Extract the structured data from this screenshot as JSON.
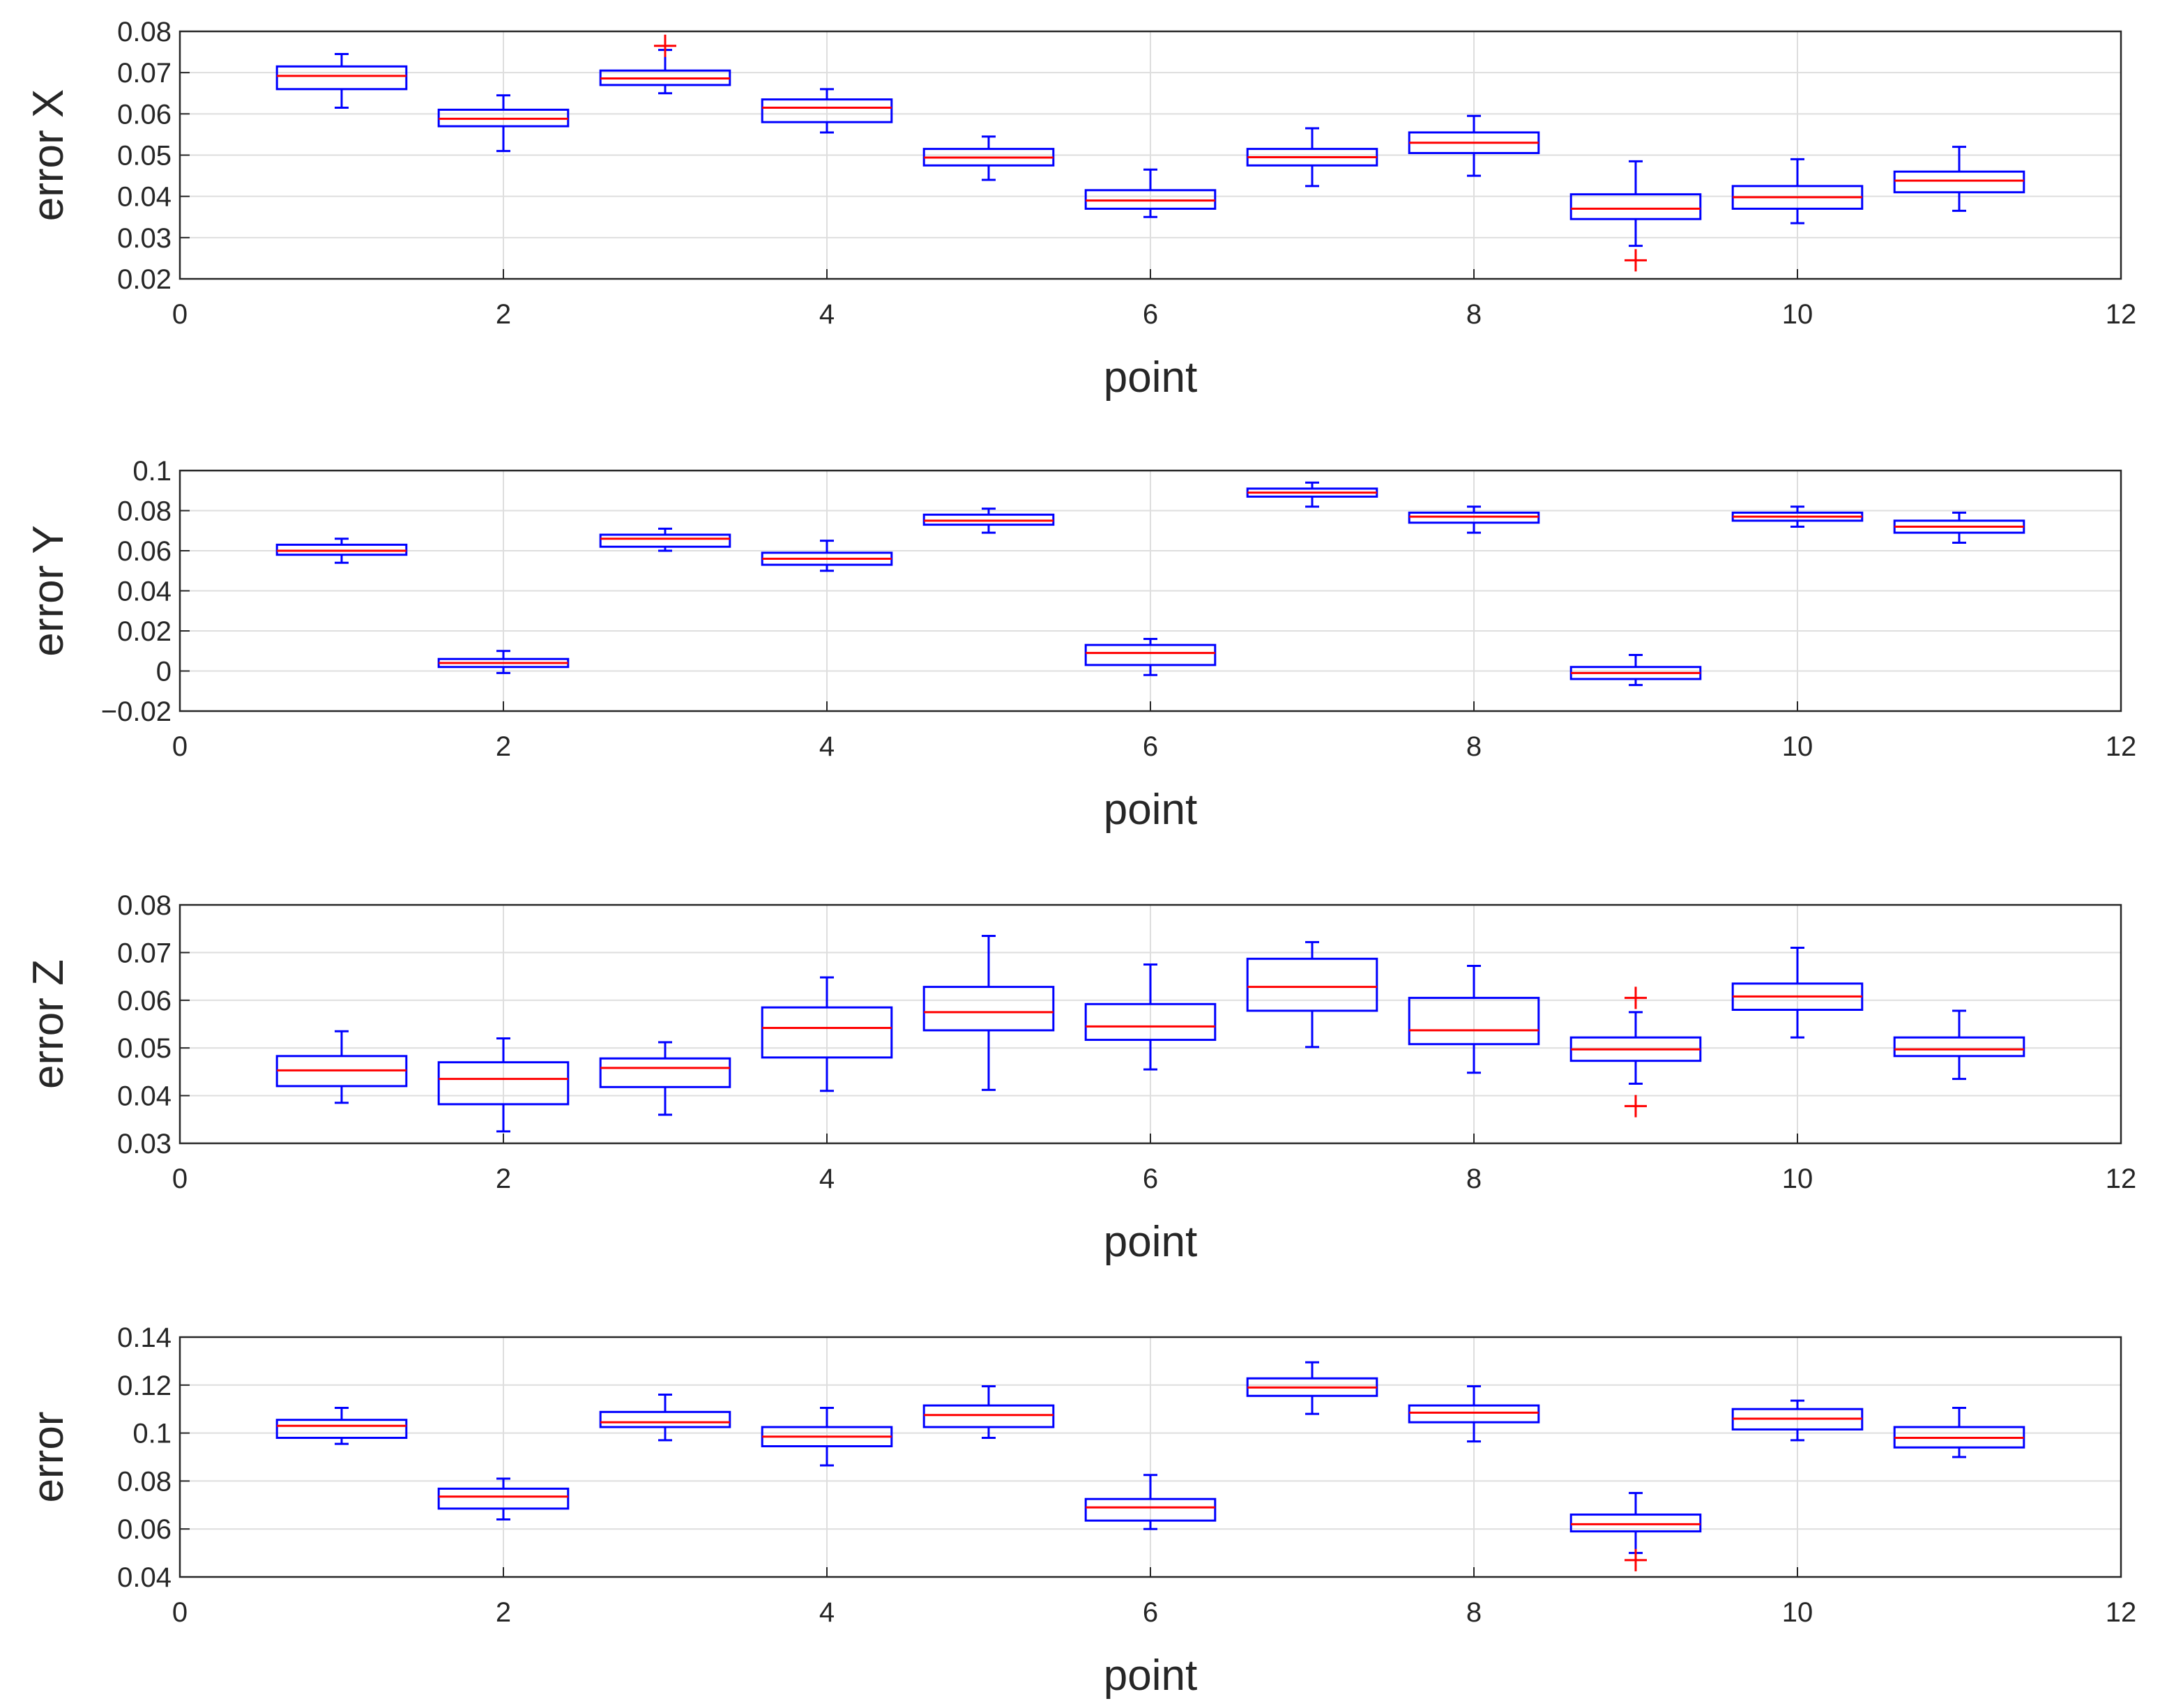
{
  "chart_data": [
    {
      "type": "box",
      "ylabel": "error X",
      "xlabel": "point",
      "xlim": [
        0,
        12
      ],
      "ylim": [
        0.02,
        0.08
      ],
      "xticks": [
        "0",
        "2",
        "4",
        "6",
        "8",
        "10",
        "12"
      ],
      "yticks": [
        "0.02",
        "0.03",
        "0.04",
        "0.05",
        "0.06",
        "0.07",
        "0.08"
      ],
      "grid": true,
      "box_color": "#0000ff",
      "median_color": "#ff0000",
      "outlier_color": "#ff0000",
      "boxes": [
        {
          "x": 1,
          "whisker_low": 0.0615,
          "q1": 0.066,
          "median": 0.0692,
          "q3": 0.0715,
          "whisker_high": 0.0745,
          "outliers": []
        },
        {
          "x": 2,
          "whisker_low": 0.051,
          "q1": 0.057,
          "median": 0.0588,
          "q3": 0.061,
          "whisker_high": 0.0645,
          "outliers": []
        },
        {
          "x": 3,
          "whisker_low": 0.065,
          "q1": 0.067,
          "median": 0.0686,
          "q3": 0.0705,
          "whisker_high": 0.0755,
          "outliers": [
            0.0765
          ]
        },
        {
          "x": 4,
          "whisker_low": 0.0555,
          "q1": 0.058,
          "median": 0.0615,
          "q3": 0.0635,
          "whisker_high": 0.066,
          "outliers": []
        },
        {
          "x": 5,
          "whisker_low": 0.044,
          "q1": 0.0475,
          "median": 0.0494,
          "q3": 0.0515,
          "whisker_high": 0.0545,
          "outliers": []
        },
        {
          "x": 6,
          "whisker_low": 0.035,
          "q1": 0.037,
          "median": 0.039,
          "q3": 0.0415,
          "whisker_high": 0.0465,
          "outliers": []
        },
        {
          "x": 7,
          "whisker_low": 0.0425,
          "q1": 0.0475,
          "median": 0.0495,
          "q3": 0.0515,
          "whisker_high": 0.0565,
          "outliers": []
        },
        {
          "x": 8,
          "whisker_low": 0.045,
          "q1": 0.0505,
          "median": 0.053,
          "q3": 0.0555,
          "whisker_high": 0.0595,
          "outliers": []
        },
        {
          "x": 9,
          "whisker_low": 0.028,
          "q1": 0.0345,
          "median": 0.037,
          "q3": 0.0405,
          "whisker_high": 0.0485,
          "outliers": [
            0.0245
          ]
        },
        {
          "x": 10,
          "whisker_low": 0.0335,
          "q1": 0.037,
          "median": 0.0398,
          "q3": 0.0425,
          "whisker_high": 0.049,
          "outliers": []
        },
        {
          "x": 11,
          "whisker_low": 0.0365,
          "q1": 0.041,
          "median": 0.0438,
          "q3": 0.046,
          "whisker_high": 0.052,
          "outliers": []
        }
      ]
    },
    {
      "type": "box",
      "ylabel": "error Y",
      "xlabel": "point",
      "xlim": [
        0,
        12
      ],
      "ylim": [
        -0.02,
        0.1
      ],
      "xticks": [
        "0",
        "2",
        "4",
        "6",
        "8",
        "10",
        "12"
      ],
      "yticks": [
        "−0.02",
        "0",
        "0.02",
        "0.04",
        "0.06",
        "0.08",
        "0.1"
      ],
      "grid": true,
      "box_color": "#0000ff",
      "median_color": "#ff0000",
      "outlier_color": "#ff0000",
      "boxes": [
        {
          "x": 1,
          "whisker_low": 0.054,
          "q1": 0.058,
          "median": 0.06,
          "q3": 0.063,
          "whisker_high": 0.066,
          "outliers": []
        },
        {
          "x": 2,
          "whisker_low": -0.001,
          "q1": 0.002,
          "median": 0.004,
          "q3": 0.006,
          "whisker_high": 0.01,
          "outliers": []
        },
        {
          "x": 3,
          "whisker_low": 0.06,
          "q1": 0.062,
          "median": 0.066,
          "q3": 0.068,
          "whisker_high": 0.071,
          "outliers": []
        },
        {
          "x": 4,
          "whisker_low": 0.05,
          "q1": 0.053,
          "median": 0.056,
          "q3": 0.059,
          "whisker_high": 0.065,
          "outliers": []
        },
        {
          "x": 5,
          "whisker_low": 0.069,
          "q1": 0.073,
          "median": 0.075,
          "q3": 0.078,
          "whisker_high": 0.081,
          "outliers": []
        },
        {
          "x": 6,
          "whisker_low": -0.002,
          "q1": 0.003,
          "median": 0.009,
          "q3": 0.013,
          "whisker_high": 0.016,
          "outliers": []
        },
        {
          "x": 7,
          "whisker_low": 0.082,
          "q1": 0.087,
          "median": 0.089,
          "q3": 0.091,
          "whisker_high": 0.094,
          "outliers": []
        },
        {
          "x": 8,
          "whisker_low": 0.069,
          "q1": 0.074,
          "median": 0.077,
          "q3": 0.079,
          "whisker_high": 0.082,
          "outliers": []
        },
        {
          "x": 9,
          "whisker_low": -0.007,
          "q1": -0.004,
          "median": -0.001,
          "q3": 0.002,
          "whisker_high": 0.008,
          "outliers": []
        },
        {
          "x": 10,
          "whisker_low": 0.072,
          "q1": 0.075,
          "median": 0.077,
          "q3": 0.079,
          "whisker_high": 0.082,
          "outliers": []
        },
        {
          "x": 11,
          "whisker_low": 0.064,
          "q1": 0.069,
          "median": 0.072,
          "q3": 0.075,
          "whisker_high": 0.079,
          "outliers": []
        }
      ]
    },
    {
      "type": "box",
      "ylabel": "error Z",
      "xlabel": "point",
      "xlim": [
        0,
        12
      ],
      "ylim": [
        0.03,
        0.08
      ],
      "xticks": [
        "0",
        "2",
        "4",
        "6",
        "8",
        "10",
        "12"
      ],
      "yticks": [
        "0.03",
        "0.04",
        "0.05",
        "0.06",
        "0.07",
        "0.08"
      ],
      "grid": true,
      "box_color": "#0000ff",
      "median_color": "#ff0000",
      "outlier_color": "#ff0000",
      "boxes": [
        {
          "x": 1,
          "whisker_low": 0.0385,
          "q1": 0.042,
          "median": 0.0453,
          "q3": 0.0483,
          "whisker_high": 0.0535,
          "outliers": []
        },
        {
          "x": 2,
          "whisker_low": 0.0325,
          "q1": 0.0382,
          "median": 0.0435,
          "q3": 0.047,
          "whisker_high": 0.052,
          "outliers": []
        },
        {
          "x": 3,
          "whisker_low": 0.036,
          "q1": 0.0418,
          "median": 0.0458,
          "q3": 0.0478,
          "whisker_high": 0.0512,
          "outliers": []
        },
        {
          "x": 4,
          "whisker_low": 0.041,
          "q1": 0.048,
          "median": 0.0542,
          "q3": 0.0585,
          "whisker_high": 0.0648,
          "outliers": []
        },
        {
          "x": 5,
          "whisker_low": 0.0412,
          "q1": 0.0537,
          "median": 0.0575,
          "q3": 0.0628,
          "whisker_high": 0.0735,
          "outliers": []
        },
        {
          "x": 6,
          "whisker_low": 0.0455,
          "q1": 0.0517,
          "median": 0.0545,
          "q3": 0.0592,
          "whisker_high": 0.0675,
          "outliers": []
        },
        {
          "x": 7,
          "whisker_low": 0.0502,
          "q1": 0.0578,
          "median": 0.0628,
          "q3": 0.0687,
          "whisker_high": 0.0722,
          "outliers": []
        },
        {
          "x": 8,
          "whisker_low": 0.0448,
          "q1": 0.0508,
          "median": 0.0537,
          "q3": 0.0605,
          "whisker_high": 0.0672,
          "outliers": []
        },
        {
          "x": 9,
          "whisker_low": 0.0425,
          "q1": 0.0473,
          "median": 0.0497,
          "q3": 0.0522,
          "whisker_high": 0.0575,
          "outliers": [
            0.0605,
            0.0378
          ]
        },
        {
          "x": 10,
          "whisker_low": 0.0522,
          "q1": 0.058,
          "median": 0.0608,
          "q3": 0.0635,
          "whisker_high": 0.071,
          "outliers": []
        },
        {
          "x": 11,
          "whisker_low": 0.0435,
          "q1": 0.0483,
          "median": 0.0497,
          "q3": 0.0522,
          "whisker_high": 0.0578,
          "outliers": []
        }
      ]
    },
    {
      "type": "box",
      "ylabel": "error",
      "xlabel": "point",
      "xlim": [
        0,
        12
      ],
      "ylim": [
        0.04,
        0.14
      ],
      "xticks": [
        "0",
        "2",
        "4",
        "6",
        "8",
        "10",
        "12"
      ],
      "yticks": [
        "0.04",
        "0.06",
        "0.08",
        "0.1",
        "0.12",
        "0.14"
      ],
      "grid": true,
      "box_color": "#0000ff",
      "median_color": "#ff0000",
      "outlier_color": "#ff0000",
      "boxes": [
        {
          "x": 1,
          "whisker_low": 0.0955,
          "q1": 0.098,
          "median": 0.103,
          "q3": 0.1055,
          "whisker_high": 0.1105,
          "outliers": []
        },
        {
          "x": 2,
          "whisker_low": 0.064,
          "q1": 0.0685,
          "median": 0.0735,
          "q3": 0.0768,
          "whisker_high": 0.081,
          "outliers": []
        },
        {
          "x": 3,
          "whisker_low": 0.097,
          "q1": 0.1025,
          "median": 0.1045,
          "q3": 0.1088,
          "whisker_high": 0.116,
          "outliers": []
        },
        {
          "x": 4,
          "whisker_low": 0.0865,
          "q1": 0.0945,
          "median": 0.0985,
          "q3": 0.1025,
          "whisker_high": 0.1105,
          "outliers": []
        },
        {
          "x": 5,
          "whisker_low": 0.098,
          "q1": 0.1025,
          "median": 0.1075,
          "q3": 0.1115,
          "whisker_high": 0.1195,
          "outliers": []
        },
        {
          "x": 6,
          "whisker_low": 0.06,
          "q1": 0.0635,
          "median": 0.069,
          "q3": 0.0725,
          "whisker_high": 0.0825,
          "outliers": []
        },
        {
          "x": 7,
          "whisker_low": 0.108,
          "q1": 0.1155,
          "median": 0.119,
          "q3": 0.1228,
          "whisker_high": 0.1295,
          "outliers": []
        },
        {
          "x": 8,
          "whisker_low": 0.0965,
          "q1": 0.1045,
          "median": 0.1085,
          "q3": 0.1115,
          "whisker_high": 0.1195,
          "outliers": []
        },
        {
          "x": 9,
          "whisker_low": 0.05,
          "q1": 0.059,
          "median": 0.062,
          "q3": 0.066,
          "whisker_high": 0.075,
          "outliers": [
            0.047
          ]
        },
        {
          "x": 10,
          "whisker_low": 0.097,
          "q1": 0.1015,
          "median": 0.106,
          "q3": 0.11,
          "whisker_high": 0.1135,
          "outliers": []
        },
        {
          "x": 11,
          "whisker_low": 0.09,
          "q1": 0.094,
          "median": 0.098,
          "q3": 0.1025,
          "whisker_high": 0.1105,
          "outliers": []
        }
      ]
    }
  ]
}
